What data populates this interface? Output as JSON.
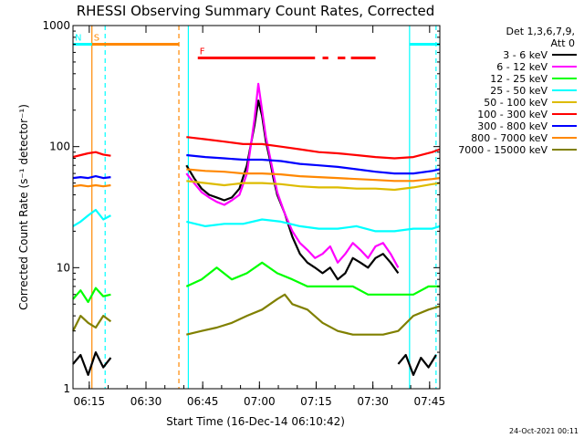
{
  "chart_data": {
    "type": "line",
    "title": "RHESSI Observing Summary Count Rates, Corrected",
    "xlabel": "Start Time (16-Dec-14 06:10:42)",
    "ylabel": "Corrected Count Rate (s⁻¹ detector⁻¹)",
    "yscale": "log",
    "ylim": [
      1,
      1000
    ],
    "y_ticks": [
      {
        "v": 1,
        "label": "1"
      },
      {
        "v": 10,
        "label": "10"
      },
      {
        "v": 100,
        "label": "100"
      },
      {
        "v": 1000,
        "label": "1000"
      }
    ],
    "xlim_min": [
      0,
      97
    ],
    "x_ticks": [
      {
        "m": 4.3,
        "label": "06:15"
      },
      {
        "m": 19.3,
        "label": "06:30"
      },
      {
        "m": 34.3,
        "label": "06:45"
      },
      {
        "m": 49.3,
        "label": "07:00"
      },
      {
        "m": 64.3,
        "label": "07:15"
      },
      {
        "m": 79.3,
        "label": "07:30"
      },
      {
        "m": 94.3,
        "label": "07:45"
      }
    ],
    "legend_header": [
      "Det 1,3,6,7,9,",
      "Att 0"
    ],
    "legend_position": "right",
    "series": [
      {
        "name": "3 - 6 keV",
        "color": "#000000",
        "segments": [
          {
            "x": [
              0,
              2,
              4,
              6,
              8,
              10
            ],
            "y": [
              1.6,
              1.9,
              1.3,
              2.0,
              1.5,
              1.8
            ]
          },
          {
            "x": [
              30,
              32,
              34,
              36,
              38,
              40,
              42,
              44,
              46,
              48,
              49,
              50,
              51,
              52,
              53,
              54,
              56,
              58,
              60,
              62,
              64,
              66,
              68,
              70,
              72,
              74,
              76,
              78,
              80,
              82,
              84,
              86
            ],
            "y": [
              70,
              55,
              45,
              40,
              38,
              36,
              38,
              45,
              70,
              150,
              240,
              180,
              110,
              80,
              55,
              40,
              28,
              18,
              13,
              11,
              10,
              9,
              10,
              8,
              9,
              12,
              11,
              10,
              12,
              13,
              11,
              9
            ]
          },
          {
            "x": [
              86,
              88,
              90,
              92,
              94,
              96
            ],
            "y": [
              1.6,
              1.9,
              1.3,
              1.8,
              1.5,
              1.9
            ]
          }
        ]
      },
      {
        "name": "6 - 12 keV",
        "color": "#ff00ff",
        "segments": [
          {
            "x": [
              30,
              32,
              34,
              36,
              38,
              40,
              42,
              44,
              46,
              48,
              49,
              50,
              51,
              52,
              53,
              54,
              56,
              58,
              60,
              62,
              64,
              66,
              68,
              70,
              72,
              74,
              76,
              78,
              80,
              82,
              84,
              86
            ],
            "y": [
              60,
              50,
              42,
              38,
              35,
              33,
              36,
              40,
              60,
              170,
              330,
              200,
              120,
              85,
              60,
              42,
              28,
              20,
              16,
              14,
              12,
              13,
              15,
              11,
              13,
              16,
              14,
              12,
              15,
              16,
              13,
              10
            ]
          }
        ]
      },
      {
        "name": "12 - 25 keV",
        "color": "#00ff00",
        "segments": [
          {
            "x": [
              0,
              2,
              4,
              6,
              8,
              10
            ],
            "y": [
              5.5,
              6.5,
              5.2,
              6.8,
              5.8,
              6.0
            ]
          },
          {
            "x": [
              30,
              34,
              38,
              42,
              46,
              50,
              54,
              58,
              62,
              66,
              70,
              74,
              78,
              82,
              86,
              90,
              94,
              97
            ],
            "y": [
              7,
              8,
              10,
              8,
              9,
              11,
              9,
              8,
              7,
              7,
              7,
              7,
              6,
              6,
              6,
              6,
              7,
              7
            ]
          }
        ]
      },
      {
        "name": "25 - 50 keV",
        "color": "#00ffff",
        "segments": [
          {
            "x": [
              0,
              2,
              4,
              6,
              8,
              10
            ],
            "y": [
              22,
              24,
              27,
              30,
              25,
              27
            ]
          },
          {
            "x": [
              30,
              35,
              40,
              45,
              50,
              55,
              60,
              65,
              70,
              75,
              80,
              85,
              90,
              95,
              97
            ],
            "y": [
              24,
              22,
              23,
              23,
              25,
              24,
              22,
              21,
              21,
              22,
              20,
              20,
              21,
              21,
              22
            ]
          }
        ]
      },
      {
        "name": "50 - 100 keV",
        "color": "#ddbb00",
        "segments": [
          {
            "x": [
              30,
              35,
              40,
              45,
              50,
              55,
              60,
              65,
              70,
              75,
              80,
              85,
              90,
              95,
              97
            ],
            "y": [
              52,
              50,
              48,
              50,
              50,
              49,
              47,
              46,
              46,
              45,
              45,
              44,
              46,
              49,
              50
            ]
          }
        ]
      },
      {
        "name": "100 - 300 keV",
        "color": "#ff0000",
        "segments": [
          {
            "x": [
              0,
              2,
              4,
              6,
              8,
              10
            ],
            "y": [
              82,
              85,
              88,
              90,
              86,
              84
            ]
          },
          {
            "x": [
              30,
              35,
              40,
              45,
              50,
              55,
              60,
              65,
              70,
              75,
              80,
              85,
              90,
              95,
              97
            ],
            "y": [
              120,
              115,
              110,
              105,
              105,
              100,
              95,
              90,
              88,
              85,
              82,
              80,
              82,
              90,
              95
            ]
          }
        ]
      },
      {
        "name": "300 - 800 keV",
        "color": "#0000ff",
        "segments": [
          {
            "x": [
              0,
              2,
              4,
              6,
              8,
              10
            ],
            "y": [
              55,
              56,
              55,
              57,
              55,
              56
            ]
          },
          {
            "x": [
              30,
              35,
              40,
              45,
              50,
              55,
              60,
              65,
              70,
              75,
              80,
              85,
              90,
              95,
              97
            ],
            "y": [
              85,
              82,
              80,
              78,
              78,
              76,
              72,
              70,
              68,
              65,
              62,
              60,
              60,
              63,
              65
            ]
          }
        ]
      },
      {
        "name": "800 - 7000 keV",
        "color": "#ff8800",
        "segments": [
          {
            "x": [
              0,
              2,
              4,
              6,
              8,
              10
            ],
            "y": [
              47,
              48,
              47,
              48,
              47,
              48
            ]
          },
          {
            "x": [
              30,
              35,
              40,
              45,
              50,
              55,
              60,
              65,
              70,
              75,
              80,
              85,
              90,
              95,
              97
            ],
            "y": [
              65,
              63,
              62,
              60,
              60,
              59,
              57,
              56,
              55,
              54,
              53,
              52,
              52,
              54,
              55
            ]
          }
        ]
      },
      {
        "name": "7000 - 15000 keV",
        "color": "#808000",
        "segments": [
          {
            "x": [
              0,
              2,
              4,
              6,
              8,
              10
            ],
            "y": [
              3.0,
              4.0,
              3.5,
              3.2,
              4.0,
              3.6
            ]
          },
          {
            "x": [
              30,
              34,
              38,
              42,
              46,
              50,
              54,
              56,
              58,
              62,
              66,
              70,
              74,
              78,
              82,
              86,
              90,
              94,
              97
            ],
            "y": [
              2.8,
              3.0,
              3.2,
              3.5,
              4.0,
              4.5,
              5.5,
              6.0,
              5.0,
              4.5,
              3.5,
              3.0,
              2.8,
              2.8,
              2.8,
              3.0,
              4.0,
              4.5,
              4.8
            ]
          }
        ]
      }
    ],
    "state_bars": [
      {
        "label": "S",
        "color": "#ff8800",
        "y": 700,
        "start": 5,
        "end": 28
      },
      {
        "label": "N",
        "color": "#00ffff",
        "y": 700,
        "start": 0,
        "end": 5
      },
      {
        "label": "",
        "color": "#00ffff",
        "y": 700,
        "start": 89,
        "end": 97
      },
      {
        "label": "F",
        "color": "#ff0000",
        "y": 540,
        "start": 33,
        "end": 64
      },
      {
        "label": "",
        "color": "#ff0000",
        "y": 540,
        "start": 66,
        "end": 67.5
      },
      {
        "label": "",
        "color": "#ff0000",
        "y": 540,
        "start": 70,
        "end": 72
      },
      {
        "label": "",
        "color": "#ff0000",
        "y": 540,
        "start": 73.5,
        "end": 80
      }
    ],
    "markers": [
      {
        "x": 5,
        "color": "#ff8800",
        "style": "solid"
      },
      {
        "x": 8.5,
        "color": "#00ffff",
        "style": "dashed"
      },
      {
        "x": 28,
        "color": "#ff8800",
        "style": "dashed"
      },
      {
        "x": 30.5,
        "color": "#00ffff",
        "style": "solid"
      },
      {
        "x": 89,
        "color": "#00ffff",
        "style": "solid"
      },
      {
        "x": 96,
        "color": "#00ffff",
        "style": "dashed"
      }
    ],
    "grid": false
  },
  "footer_stamp": "24-Oct-2021 00:11"
}
